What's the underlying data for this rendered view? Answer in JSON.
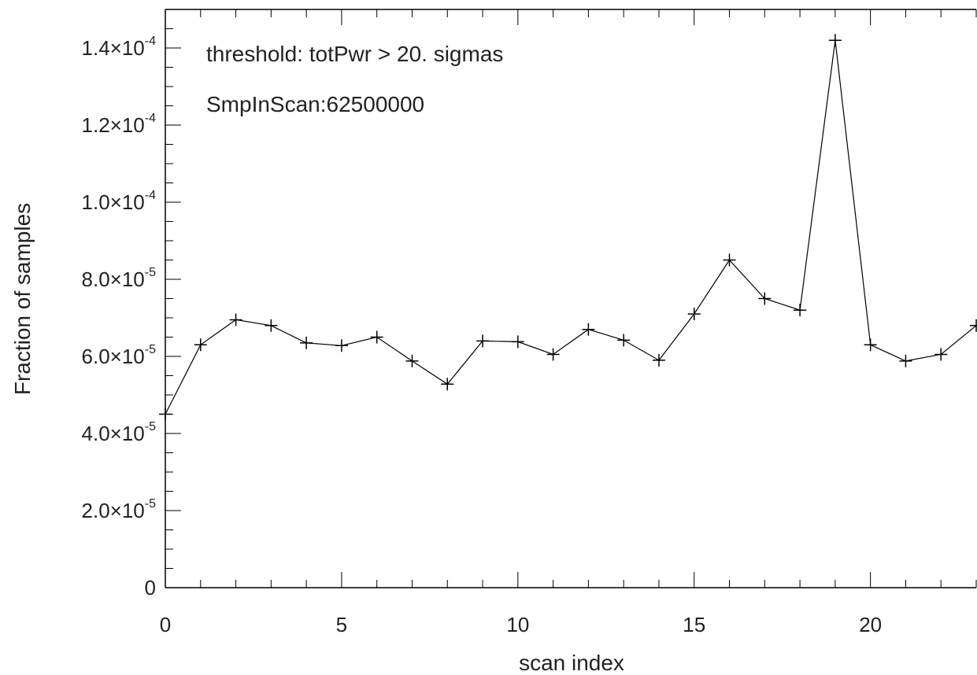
{
  "chart_data": {
    "type": "line",
    "xlabel": "scan index",
    "ylabel": "Fraction of samples",
    "xlim": [
      0,
      23
    ],
    "ylim": [
      0,
      0.00015
    ],
    "x_ticks": [
      {
        "value": 0,
        "label": "0"
      },
      {
        "value": 5,
        "label": "5"
      },
      {
        "value": 10,
        "label": "10"
      },
      {
        "value": 15,
        "label": "15"
      },
      {
        "value": 20,
        "label": "20"
      }
    ],
    "y_ticks": [
      {
        "value": 0,
        "mant": "0",
        "exp": ""
      },
      {
        "value": 2e-05,
        "mant": "2.0×10",
        "exp": "-5"
      },
      {
        "value": 4e-05,
        "mant": "4.0×10",
        "exp": "-5"
      },
      {
        "value": 6e-05,
        "mant": "6.0×10",
        "exp": "-5"
      },
      {
        "value": 8e-05,
        "mant": "8.0×10",
        "exp": "-5"
      },
      {
        "value": 0.0001,
        "mant": "1.0×10",
        "exp": "-4"
      },
      {
        "value": 0.00012,
        "mant": "1.2×10",
        "exp": "-4"
      },
      {
        "value": 0.00014,
        "mant": "1.4×10",
        "exp": "-4"
      }
    ],
    "annotations": [
      "threshold: totPwr >  20. sigmas",
      "SmpInScan:62500000"
    ],
    "series": [
      {
        "x": [
          0,
          1,
          2,
          3,
          4,
          5,
          6,
          7,
          8,
          9,
          10,
          11,
          12,
          13,
          14,
          15,
          16,
          17,
          18,
          19,
          20,
          21,
          22,
          23
        ],
        "y": [
          4.5e-05,
          6.3e-05,
          6.95e-05,
          6.8e-05,
          6.35e-05,
          6.28e-05,
          6.5e-05,
          5.88e-05,
          5.28e-05,
          6.4e-05,
          6.38e-05,
          6.05e-05,
          6.7e-05,
          6.42e-05,
          5.9e-05,
          7.1e-05,
          8.5e-05,
          7.5e-05,
          7.2e-05,
          0.000142,
          6.3e-05,
          5.88e-05,
          6.05e-05,
          6.8e-05
        ],
        "marker": "plus",
        "color": "#000000"
      }
    ]
  }
}
